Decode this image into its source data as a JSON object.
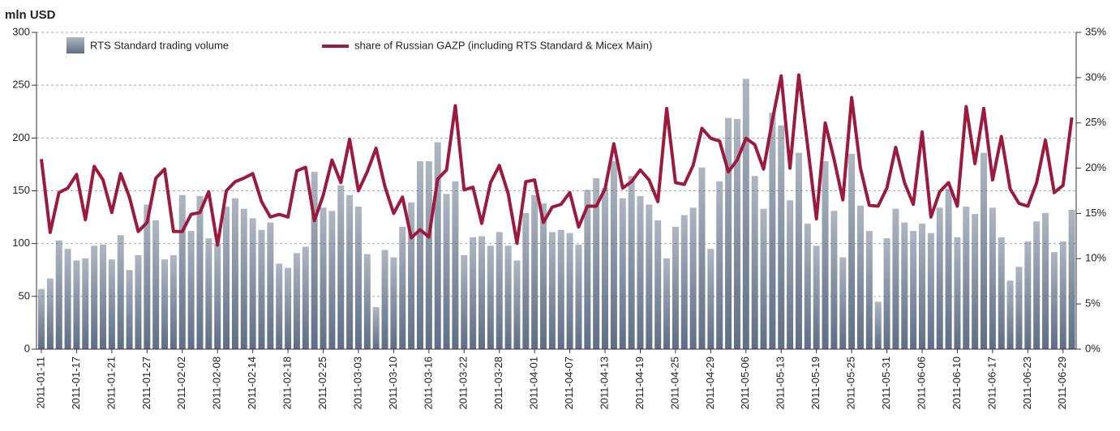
{
  "chart_data": {
    "type": "bar",
    "y_label": "mln USD",
    "categories": [
      "2011-01-11",
      null,
      null,
      null,
      "2011-01-17",
      null,
      null,
      null,
      "2011-01-21",
      null,
      null,
      null,
      "2011-01-27",
      null,
      null,
      null,
      "2011-02-02",
      null,
      null,
      null,
      "2011-02-08",
      null,
      null,
      null,
      "2011-02-14",
      null,
      null,
      null,
      "2011-02-18",
      null,
      null,
      null,
      "2011-02-25",
      null,
      null,
      null,
      "2011-03-03",
      null,
      null,
      null,
      "2011-03-10",
      null,
      null,
      null,
      "2011-03-16",
      null,
      null,
      null,
      "2011-03-22",
      null,
      null,
      null,
      "2011-03-28",
      null,
      null,
      null,
      "2011-04-01",
      null,
      null,
      null,
      "2011-04-07",
      null,
      null,
      null,
      "2011-04-13",
      null,
      null,
      null,
      "2011-04-19",
      null,
      null,
      null,
      "2011-04-25",
      null,
      null,
      null,
      "2011-04-29",
      null,
      null,
      null,
      "2011-05-06",
      null,
      null,
      null,
      "2011-05-13",
      null,
      null,
      null,
      "2011-05-19",
      null,
      null,
      null,
      "2011-05-25",
      null,
      null,
      null,
      "2011-05-31",
      null,
      null,
      null,
      "2011-06-06",
      null,
      null,
      null,
      "2011-06-10",
      null,
      null,
      null,
      "2011-06-17",
      null,
      null,
      null,
      "2011-06-23",
      null,
      null,
      null,
      "2011-06-29",
      null
    ],
    "series": [
      {
        "name": "RTS Standard trading volume",
        "type": "bar",
        "color": "#5f6e84",
        "values": [
          57,
          67,
          103,
          95,
          84,
          86,
          98,
          99,
          85,
          108,
          75,
          89,
          137,
          122,
          85,
          89,
          146,
          112,
          145,
          105,
          100,
          135,
          143,
          133,
          124,
          113,
          120,
          81,
          77,
          91,
          97,
          168,
          134,
          131,
          155,
          146,
          135,
          90,
          40,
          94,
          87,
          116,
          139,
          178,
          178,
          196,
          147,
          159,
          89,
          106,
          107,
          98,
          111,
          98,
          84,
          129,
          146,
          138,
          111,
          113,
          110,
          99,
          151,
          162,
          153,
          178,
          143,
          164,
          145,
          137,
          122,
          86,
          116,
          127,
          134,
          172,
          95,
          159,
          219,
          218,
          256,
          164,
          133,
          224,
          212,
          141,
          186,
          119,
          98,
          178,
          131,
          87,
          185,
          136,
          112,
          45,
          105,
          133,
          120,
          112,
          119,
          110,
          134,
          152,
          106,
          135,
          128,
          186,
          134,
          106,
          65,
          78,
          102,
          121,
          129,
          92,
          102,
          132
        ]
      },
      {
        "name": "share of Russian GAZP (including RTS Standard & Micex Main)",
        "type": "line",
        "axis": "y2",
        "color": "#9b1a3e",
        "values": [
          21.0,
          12.9,
          17.3,
          17.8,
          19.3,
          14.3,
          20.2,
          18.7,
          15.1,
          19.4,
          16.8,
          13.0,
          14.0,
          18.9,
          19.9,
          13.0,
          13.0,
          14.9,
          15.1,
          17.4,
          11.5,
          17.5,
          18.5,
          18.9,
          19.4,
          16.3,
          14.6,
          14.9,
          14.6,
          19.7,
          20.1,
          14.2,
          17.0,
          20.9,
          18.4,
          23.2,
          17.5,
          19.6,
          22.2,
          18.0,
          15.0,
          16.8,
          12.3,
          13.2,
          12.4,
          18.8,
          19.8,
          26.9,
          17.6,
          17.9,
          13.9,
          18.4,
          20.3,
          17.2,
          11.7,
          18.5,
          18.7,
          14.0,
          15.7,
          16.0,
          17.3,
          13.5,
          15.8,
          15.8,
          17.7,
          22.7,
          17.8,
          18.5,
          19.8,
          18.7,
          16.3,
          26.6,
          18.4,
          18.2,
          20.3,
          24.4,
          23.3,
          23.0,
          19.6,
          20.9,
          23.3,
          22.6,
          19.9,
          25.3,
          30.2,
          20.0,
          30.3,
          22.5,
          14.4,
          25.0,
          21.0,
          16.5,
          27.8,
          20.0,
          15.9,
          15.8,
          17.8,
          22.3,
          18.4,
          16.0,
          24.0,
          14.6,
          17.4,
          18.4,
          15.8,
          26.8,
          20.5,
          26.6,
          18.7,
          23.5,
          17.7,
          16.1,
          15.8,
          18.4,
          23.1,
          17.3,
          18.1,
          25.6
        ]
      }
    ],
    "ylim": [
      0,
      300
    ],
    "yticks": [
      0,
      50,
      100,
      150,
      200,
      250,
      300
    ],
    "y2lim": [
      0,
      35
    ],
    "y2ticks": [
      {
        "value": 0,
        "label": "0%"
      },
      {
        "value": 5,
        "label": "5%"
      },
      {
        "value": 10,
        "label": "10%"
      },
      {
        "value": 15,
        "label": "15%"
      },
      {
        "value": 20,
        "label": "20%"
      },
      {
        "value": 25,
        "label": "25%"
      },
      {
        "value": 30,
        "label": "30%"
      },
      {
        "value": 35,
        "label": "35%"
      }
    ],
    "grid": true
  }
}
